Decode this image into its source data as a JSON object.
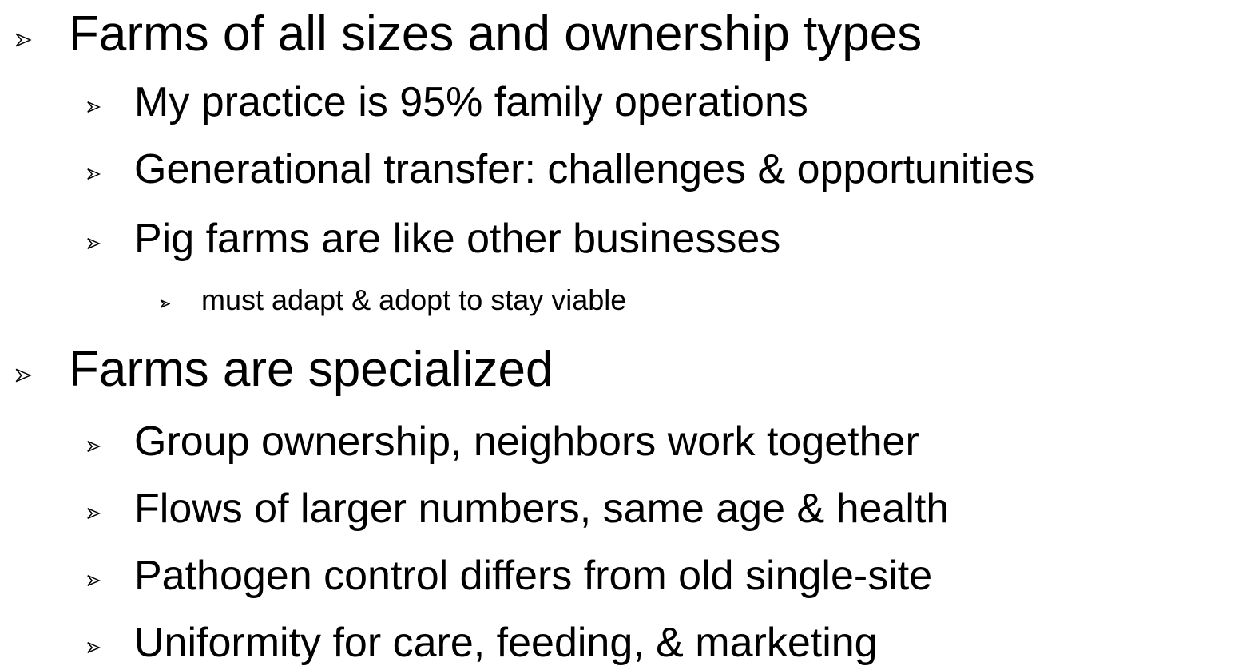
{
  "items": [
    {
      "text": "Farms of all sizes and ownership types",
      "children": [
        {
          "text": "My practice is 95% family operations",
          "children": []
        },
        {
          "text": "Generational transfer: challenges & opportunities",
          "children": []
        },
        {
          "text": "Pig farms are like other businesses",
          "children": [
            {
              "text": "must adapt & adopt to stay viable",
              "children": []
            }
          ]
        }
      ]
    },
    {
      "text": "Farms are specialized",
      "children": [
        {
          "text": "Group ownership, neighbors work together",
          "children": []
        },
        {
          "text": "Flows of larger numbers, same age & health",
          "children": []
        },
        {
          "text": "Pathogen control differs from old single-site",
          "children": []
        },
        {
          "text": "Uniformity for care, feeding, & marketing",
          "children": []
        }
      ]
    }
  ]
}
